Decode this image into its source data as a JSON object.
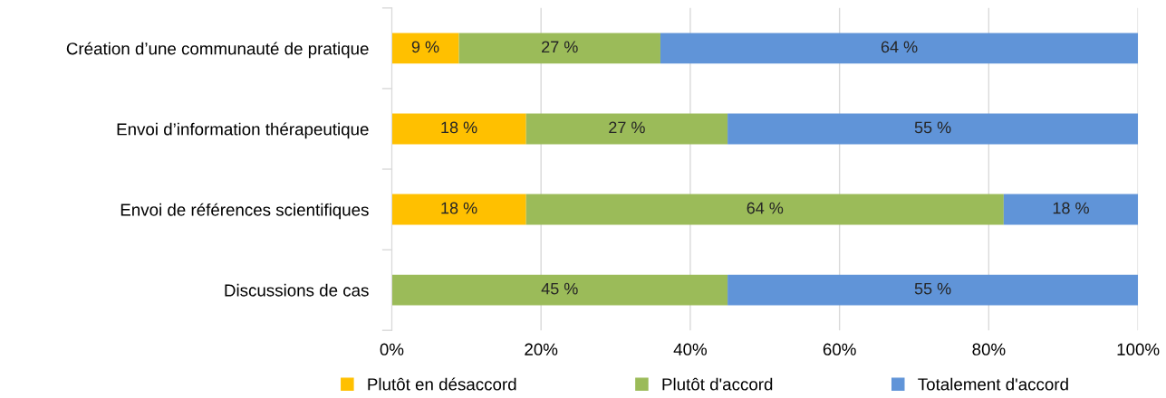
{
  "chart_data": {
    "type": "bar",
    "orientation": "horizontal",
    "stacked": true,
    "categories": [
      "Création d’une communauté de pratique",
      "Envoi d’information thérapeutique",
      "Envoi de références scientifiques",
      "Discussions de cas"
    ],
    "series": [
      {
        "name": "Plutôt en désaccord",
        "color": "#ffc000",
        "values": [
          9,
          18,
          18,
          null
        ],
        "value_labels": [
          "9 %",
          "18 %",
          "18 %",
          null
        ]
      },
      {
        "name": "Plutôt d'accord",
        "color": "#9bbb59",
        "values": [
          27,
          27,
          64,
          45
        ],
        "value_labels": [
          "27 %",
          "27 %",
          "64 %",
          "45 %"
        ]
      },
      {
        "name": "Totalement d'accord",
        "color": "#6094d8",
        "values": [
          64,
          55,
          18,
          55
        ],
        "value_labels": [
          "64 %",
          "55 %",
          "18 %",
          "55 %"
        ]
      }
    ],
    "xlim": [
      0,
      100
    ],
    "xticks": [
      {
        "value": 0,
        "label": "0%"
      },
      {
        "value": 20,
        "label": "20%"
      },
      {
        "value": 40,
        "label": "40%"
      },
      {
        "value": 60,
        "label": "60%"
      },
      {
        "value": 80,
        "label": "80%"
      },
      {
        "value": 100,
        "label": "100%"
      }
    ],
    "grid": "x",
    "legend": "bottom"
  }
}
